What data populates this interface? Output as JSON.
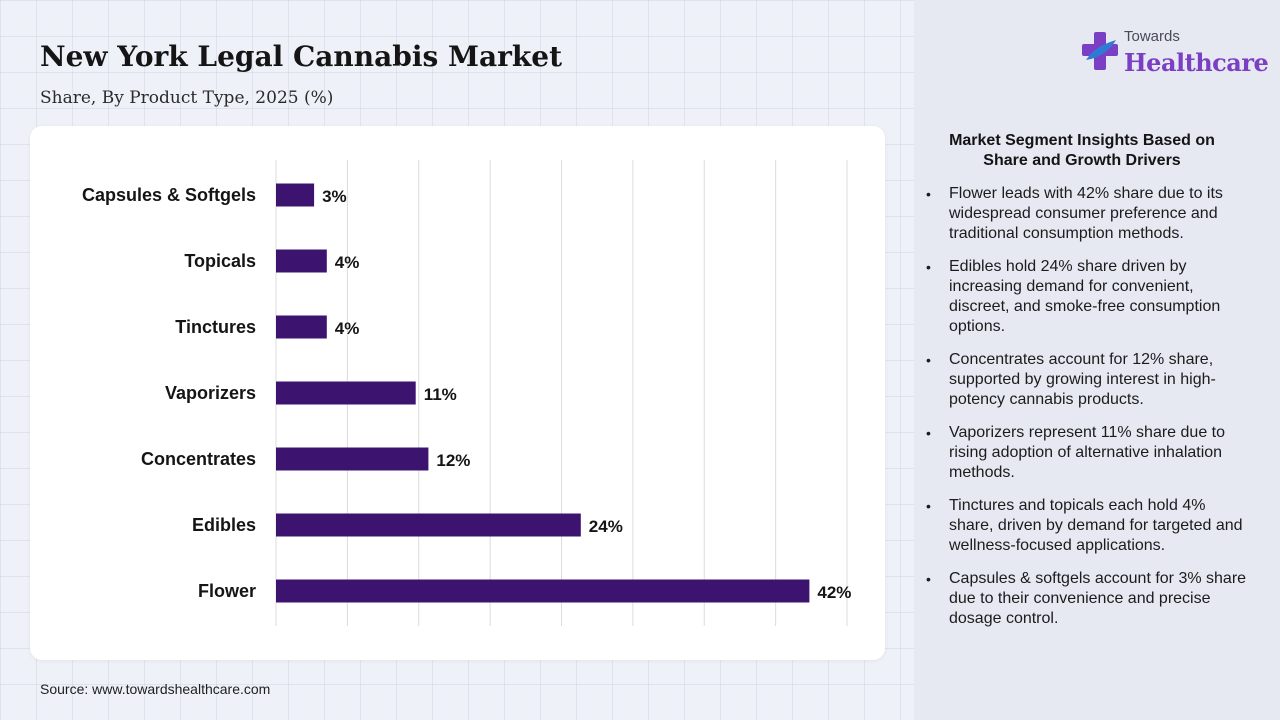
{
  "header": {
    "title": "New York Legal Cannabis Market",
    "subtitle": "Share, By Product Type, 2025 (%)"
  },
  "logo": {
    "small_text": "Towards",
    "big_text": "Healthcare"
  },
  "source": "Source: www.towardshealthcare.com",
  "colors": {
    "bar": "#3c1470",
    "brand_purple": "#7b3fc4",
    "brand_blue": "#2e7bd6",
    "grid": "#dcdcdc"
  },
  "insights": {
    "heading": "Market Segment Insights Based on Share and Growth Drivers",
    "items": [
      "Flower leads with 42% share due to its widespread consumer preference and traditional consumption methods.",
      "Edibles hold 24% share driven by increasing demand for convenient, discreet, and smoke-free consumption options.",
      "Concentrates account for 12% share, supported by growing interest in high-potency cannabis products.",
      "Vaporizers represent 11% share due to rising adoption of alternative inhalation methods.",
      "Tinctures and topicals each hold 4% share, driven by demand for targeted and wellness-focused applications.",
      "Capsules & softgels account for 3% share due to their convenience and precise dosage control."
    ]
  },
  "chart_data": {
    "type": "bar",
    "orientation": "horizontal",
    "title": "New York Legal Cannabis Market",
    "subtitle": "Share, By Product Type, 2025 (%)",
    "categories": [
      "Capsules & Softgels",
      "Topicals",
      "Tinctures",
      "Vaporizers",
      "Concentrates",
      "Edibles",
      "Flower"
    ],
    "values": [
      3,
      4,
      4,
      11,
      12,
      24,
      42
    ],
    "data_labels": [
      "3%",
      "4%",
      "4%",
      "11%",
      "12%",
      "24%",
      "42%"
    ],
    "xlim": [
      0,
      45
    ],
    "grid": true,
    "xlabel": "",
    "ylabel": ""
  }
}
